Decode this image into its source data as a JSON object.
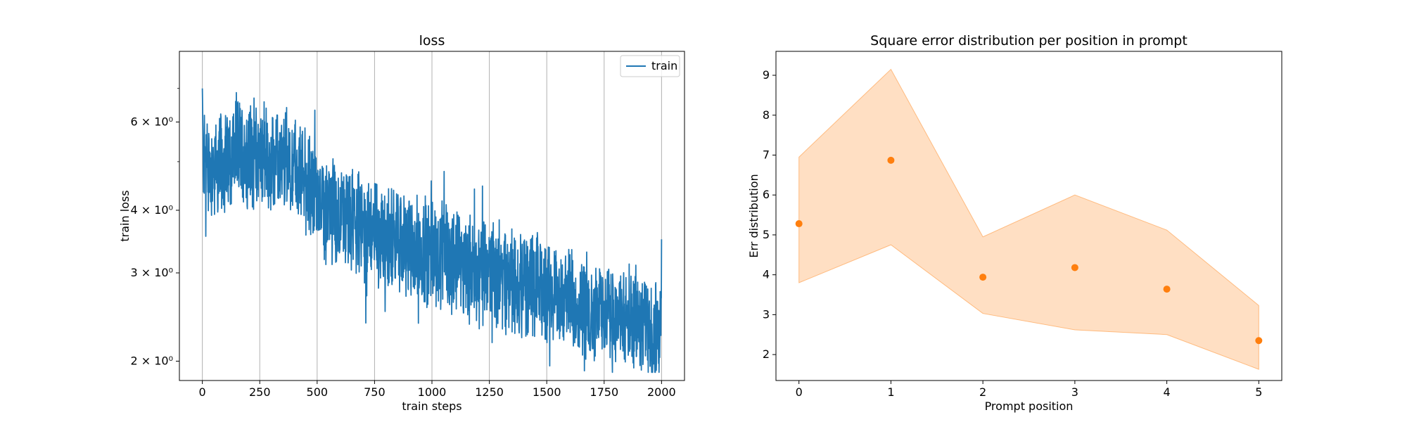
{
  "chart_data": [
    {
      "type": "line",
      "title": "loss",
      "xlabel": "train steps",
      "ylabel": "train loss",
      "xlim": [
        -100,
        2100
      ],
      "ylim": [
        1.83,
        8.3
      ],
      "yscale": "log",
      "grid": "x-axis vertical lines",
      "legend": {
        "placement": "top-right",
        "entries": [
          "train"
        ]
      },
      "xticks": [
        0,
        250,
        500,
        750,
        1000,
        1250,
        1500,
        1750,
        2000
      ],
      "xtick_labels": [
        "0",
        "250",
        "500",
        "750",
        "1000",
        "1250",
        "1500",
        "1750",
        "2000"
      ],
      "yticks": [
        2,
        3,
        4,
        6
      ],
      "ytick_labels": [
        "2 × 10⁰",
        "3 × 10⁰",
        "4 × 10⁰",
        "6 × 10⁰"
      ],
      "series": [
        {
          "name": "train",
          "color": "#1f77b4",
          "x": [
            0,
            25,
            50,
            100,
            150,
            200,
            250,
            300,
            350,
            400,
            450,
            500,
            550,
            600,
            650,
            700,
            750,
            800,
            850,
            900,
            950,
            1000,
            1050,
            1100,
            1150,
            1200,
            1250,
            1300,
            1350,
            1400,
            1450,
            1500,
            1550,
            1600,
            1650,
            1700,
            1750,
            1800,
            1850,
            1900,
            1950,
            2000
          ],
          "y": [
            5.2,
            4.9,
            4.8,
            5.0,
            5.3,
            5.2,
            5.2,
            5.0,
            4.9,
            4.9,
            4.6,
            4.2,
            4.0,
            3.9,
            3.8,
            3.7,
            3.6,
            3.5,
            3.5,
            3.4,
            3.3,
            3.3,
            3.2,
            3.2,
            3.1,
            3.0,
            3.0,
            2.95,
            2.9,
            2.85,
            2.8,
            2.75,
            2.7,
            2.65,
            2.6,
            2.55,
            2.5,
            2.45,
            2.4,
            2.35,
            2.3,
            2.3
          ]
        }
      ]
    },
    {
      "type": "scatter",
      "title": "Square error distribution per position in prompt",
      "xlabel": "Prompt position",
      "ylabel": "Err distribution",
      "xlim": [
        -0.25,
        5.25
      ],
      "ylim": [
        1.35,
        9.6
      ],
      "grid": false,
      "xticks": [
        0,
        1,
        2,
        3,
        4,
        5
      ],
      "xtick_labels": [
        "0",
        "1",
        "2",
        "3",
        "4",
        "5"
      ],
      "yticks": [
        2,
        3,
        4,
        5,
        6,
        7,
        8,
        9
      ],
      "ytick_labels": [
        "2",
        "3",
        "4",
        "5",
        "6",
        "7",
        "8",
        "9"
      ],
      "series": [
        {
          "x": [
            0,
            1,
            2,
            3,
            4,
            5
          ],
          "y": [
            5.28,
            6.87,
            3.94,
            4.18,
            3.64,
            2.35
          ],
          "color": "#ff7f0e"
        }
      ],
      "band": {
        "x": [
          0,
          1,
          2,
          3,
          4,
          5
        ],
        "upper": [
          6.95,
          9.15,
          4.95,
          6.0,
          5.12,
          3.23
        ],
        "lower": [
          3.8,
          4.75,
          3.03,
          2.62,
          2.5,
          1.63
        ],
        "color": "#ff7f0e"
      }
    }
  ]
}
